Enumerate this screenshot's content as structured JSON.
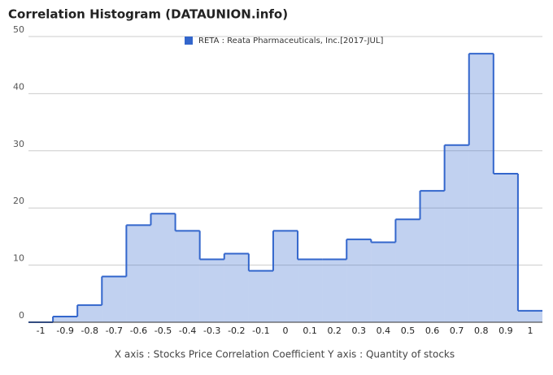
{
  "chart_data": {
    "type": "histogram",
    "title": "Correlation Histogram (DATAUNION.info)",
    "xlabel": "X axis : Stocks Price Correlation Coefficient  Y axis : Quantity of stocks",
    "series": [
      {
        "name": "RETA : Reata Pharmaceuticals, Inc.[2017-JUL]",
        "color": "#3366cc",
        "values": [
          0,
          1,
          3,
          8,
          17,
          19,
          16,
          11,
          12,
          9,
          16,
          11,
          11,
          14.5,
          14,
          18,
          23,
          31,
          47,
          26,
          2
        ]
      }
    ],
    "bins": [
      -1.05,
      -0.95,
      -0.85,
      -0.75,
      -0.65,
      -0.55,
      -0.45,
      -0.35,
      -0.25,
      -0.15,
      -0.05,
      0.05,
      0.15,
      0.25,
      0.35,
      0.45,
      0.55,
      0.65,
      0.75,
      0.85,
      0.95,
      1.05
    ],
    "xlim": [
      -1.05,
      1.05
    ],
    "xticks": [
      -1,
      -0.9,
      -0.8,
      -0.7,
      -0.6,
      -0.5,
      -0.4,
      -0.3,
      -0.2,
      -0.1,
      0,
      0.1,
      0.2,
      0.3,
      0.4,
      0.5,
      0.6,
      0.7,
      0.8,
      0.9,
      1
    ],
    "ylim": [
      0,
      50
    ],
    "yticks": [
      0,
      10,
      20,
      30,
      40,
      50
    ],
    "grid": true,
    "legend": "top"
  }
}
